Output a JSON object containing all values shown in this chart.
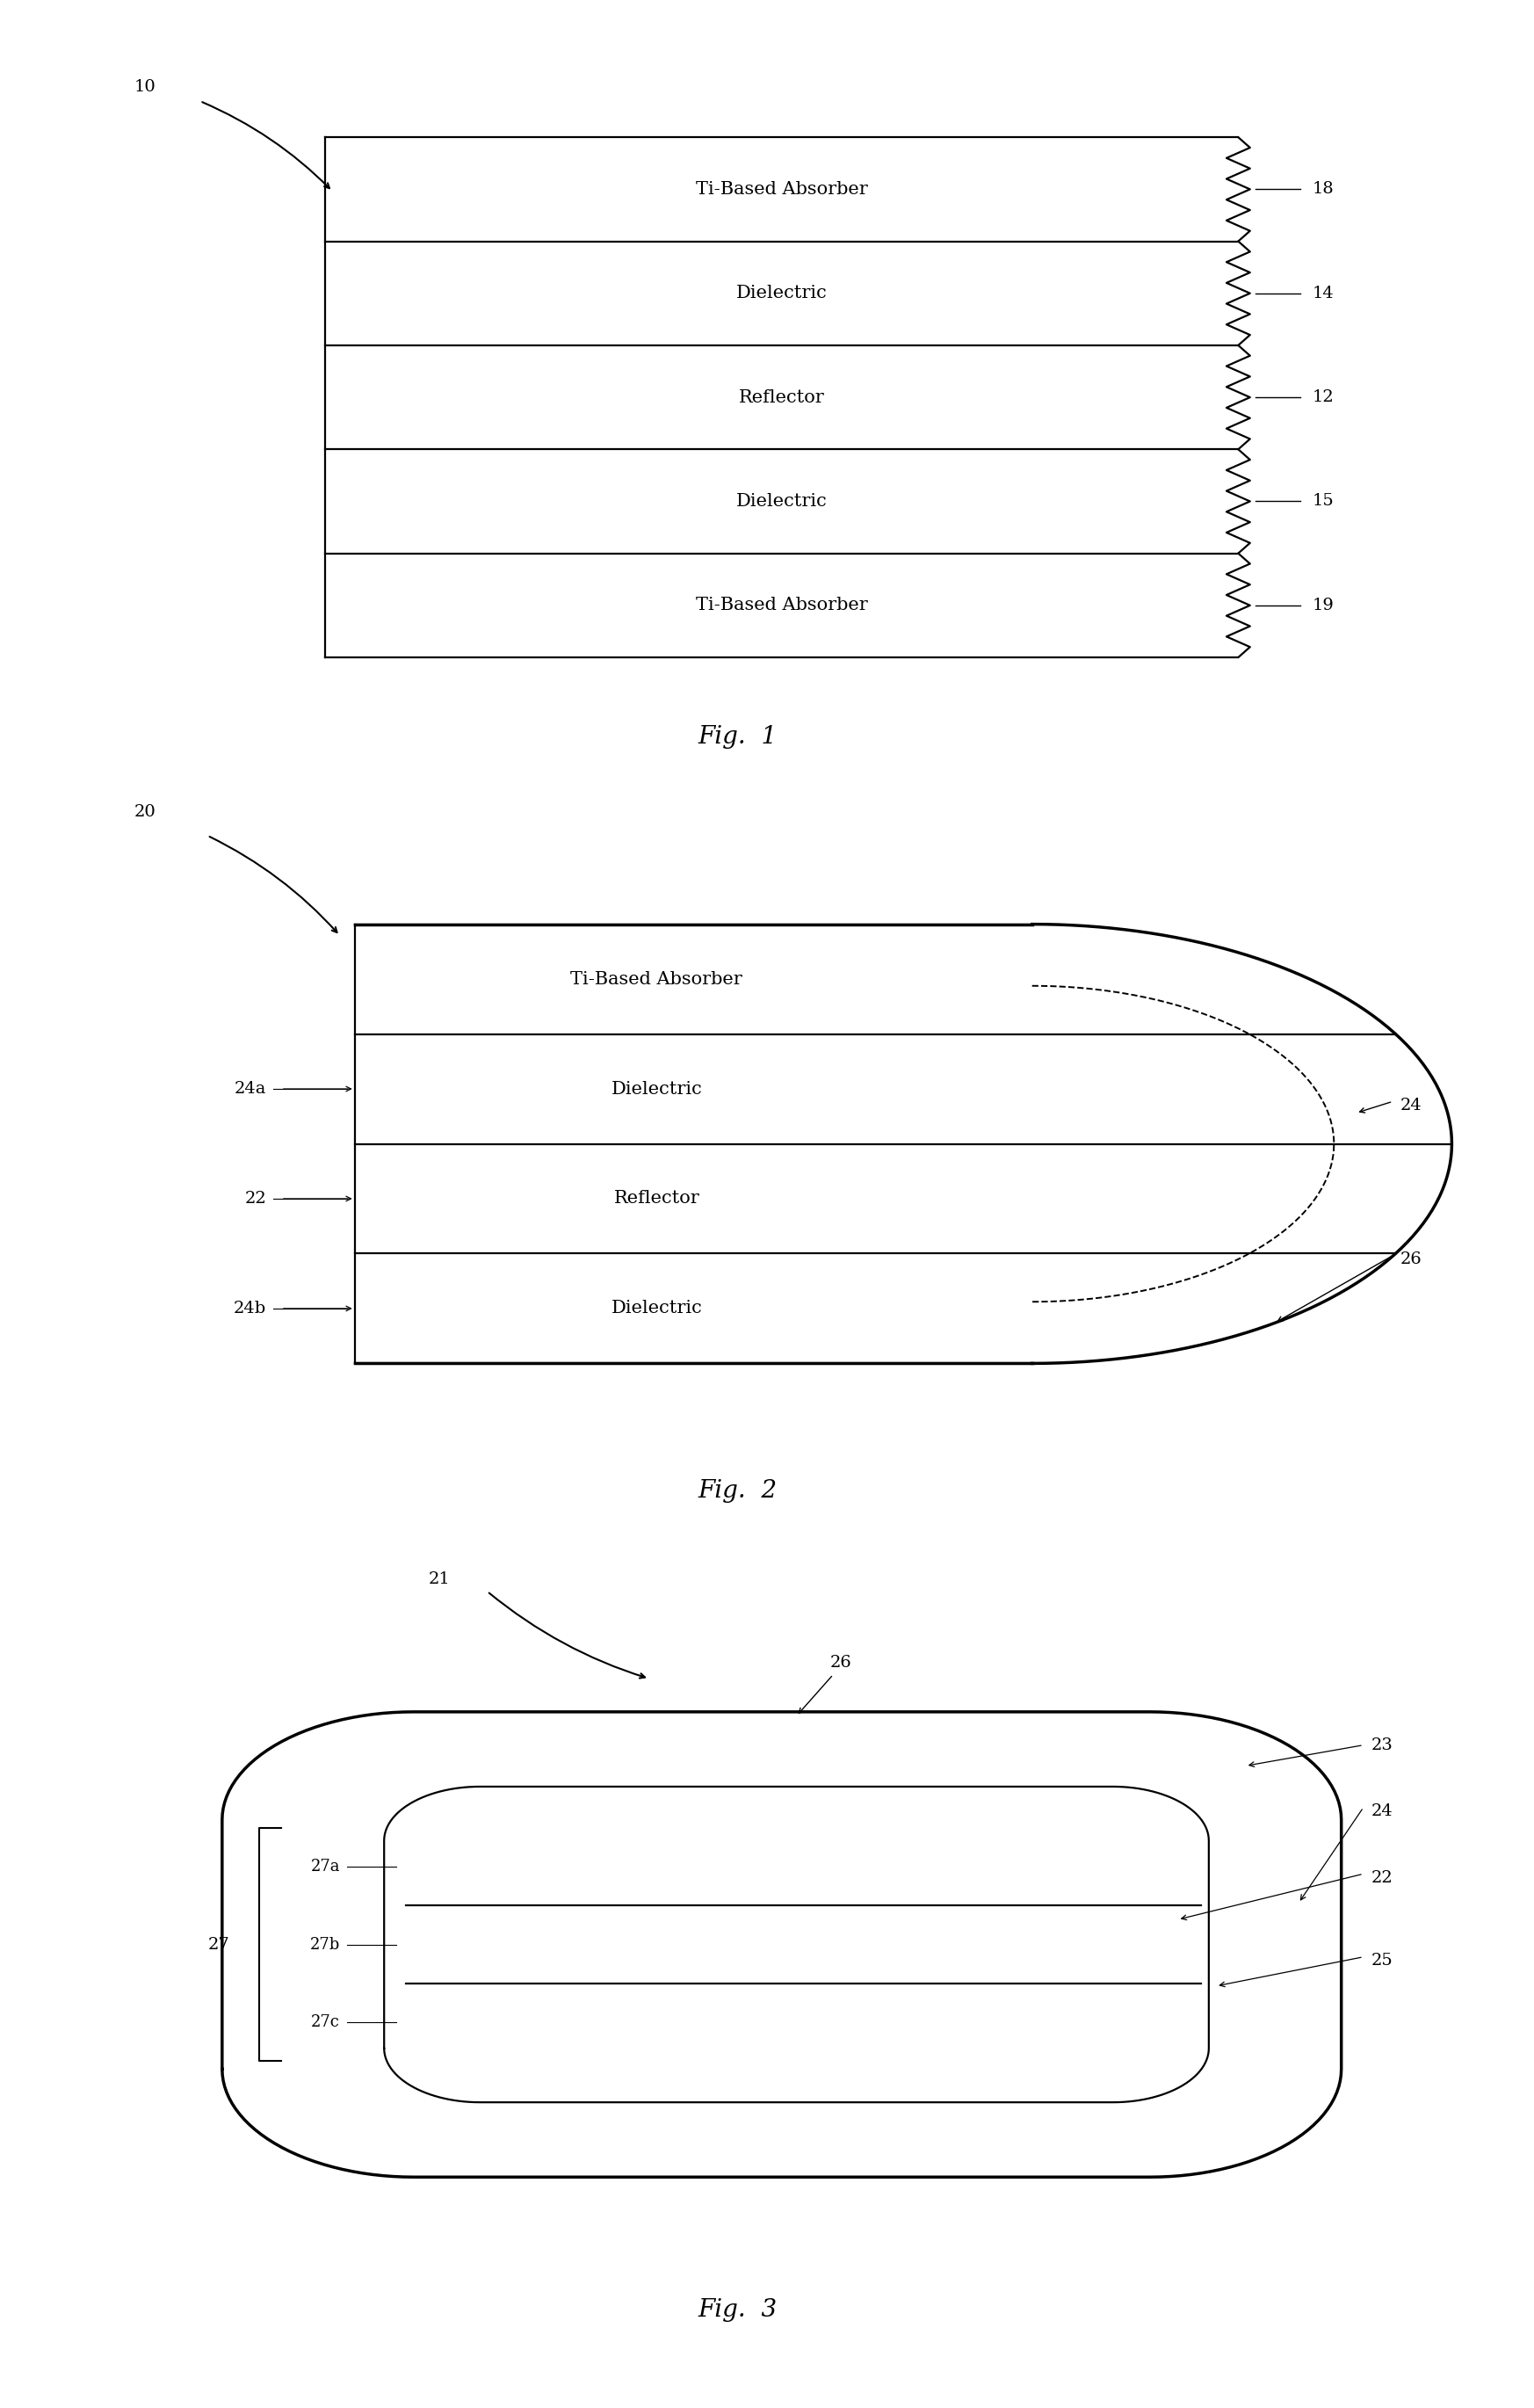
{
  "fig1": {
    "label": "10",
    "caption": "Fig.  1",
    "layers_top_to_bottom": [
      {
        "label": "18",
        "text": "Ti-Based Absorber"
      },
      {
        "label": "14",
        "text": "Dielectric"
      },
      {
        "label": "12",
        "text": "Reflector"
      },
      {
        "label": "15",
        "text": "Dielectric"
      },
      {
        "label": "19",
        "text": "Ti-Based Absorber"
      }
    ]
  },
  "fig2": {
    "label": "20",
    "caption": "Fig.  2",
    "layers_top_to_bottom": [
      {
        "text": "Ti-Based Absorber",
        "left_label": ""
      },
      {
        "text": "Dielectric",
        "left_label": "24a"
      },
      {
        "text": "Reflector",
        "left_label": "22"
      },
      {
        "text": "Dielectric",
        "left_label": "24b"
      }
    ],
    "right_label_inner": "24",
    "right_label_outer": "26"
  },
  "fig3": {
    "label": "21",
    "caption": "Fig.  3",
    "layer_labels_top_to_bottom": [
      "27a",
      "27b",
      "27c"
    ],
    "bracket_label": "27",
    "top_label": "26",
    "right_labels": [
      "23",
      "24",
      "22"
    ],
    "right_label_inner": "25"
  },
  "line_color": "#000000",
  "bg_color": "#ffffff",
  "text_fontsize": 15,
  "label_fontsize": 14,
  "caption_fontsize": 20
}
